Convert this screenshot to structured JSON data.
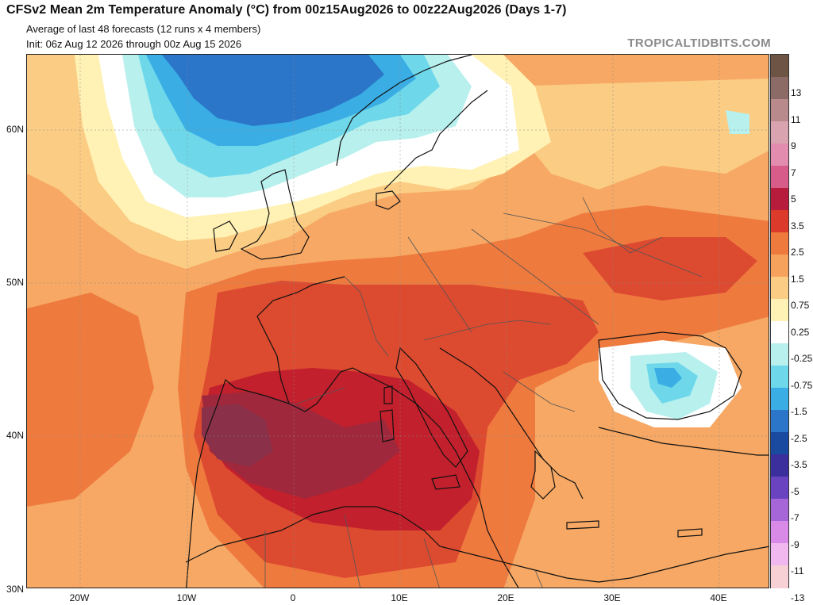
{
  "header": {
    "title": "CFSv2 Mean 2m Temperature Anomaly (°C) from 00z15Aug2026 to 00z22Aug2026 (Days 1-7)",
    "subtitle1": "Average of last 48 forecasts (12 runs x 4 members)",
    "subtitle2": "Init: 06z Aug 12 2026 through 00z Aug 15 2026",
    "brand": "TROPICALTIDBITS.COM"
  },
  "axes": {
    "lat_labels": [
      "60N",
      "50N",
      "40N",
      "30N"
    ],
    "lon_labels": [
      "20W",
      "10W",
      "0",
      "10E",
      "20E",
      "30E",
      "40E"
    ]
  },
  "colorbar": {
    "labels": [
      "13",
      "11",
      "9",
      "7",
      "5",
      "3.5",
      "2.5",
      "1.5",
      "0.75",
      "0.25",
      "-0.25",
      "-0.75",
      "-1.5",
      "-2.5",
      "-3.5",
      "-5",
      "-7",
      "-9",
      "-11",
      "-13"
    ],
    "colors": [
      "#6e5444",
      "#8c6a66",
      "#b88a8c",
      "#d9a3b0",
      "#e28cb0",
      "#d85c8a",
      "#b81c3c",
      "#dc3a2a",
      "#ef7a3e",
      "#f6a25c",
      "#fbcc84",
      "#fff2b4",
      "#ffffff",
      "#b8f0ee",
      "#6ed8ea",
      "#3aaee4",
      "#2b76c8",
      "#1a4aa0",
      "#3a2f9c",
      "#6a44c0",
      "#a766d8",
      "#d98ae6",
      "#f0b8ee",
      "#f6d0d4"
    ]
  },
  "map": {
    "colors": {
      "ocean_base": "#f6a864",
      "light_warm": "#fbcc84",
      "pale": "#fff2b4",
      "white": "#ffffff",
      "cyan": "#b8f0ee",
      "light_blue": "#6ed8ea",
      "mid_blue": "#3aaee4",
      "deep_blue": "#2b76c8",
      "orange": "#ef7a3e",
      "red_orange": "#dc4a30",
      "red": "#c2202c",
      "dark_red": "#a0283c",
      "maroon": "#8a3048",
      "coast": "#111111",
      "border": "#555555"
    }
  }
}
